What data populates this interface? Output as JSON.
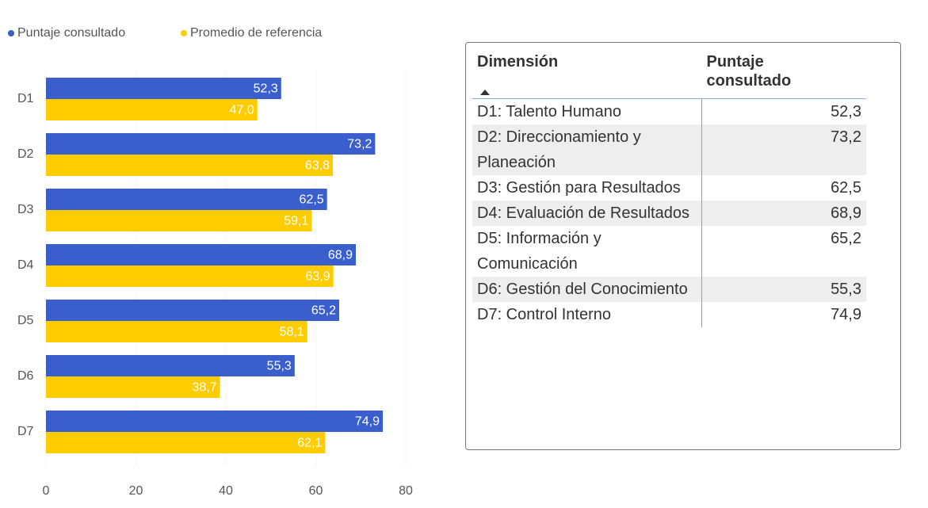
{
  "chart_data": {
    "type": "hbar",
    "categories": [
      "D1",
      "D2",
      "D3",
      "D4",
      "D5",
      "D6",
      "D7"
    ],
    "series": [
      {
        "name": "Puntaje consultado",
        "color": "#3a5fcd",
        "values": [
          52.3,
          73.2,
          62.5,
          68.9,
          65.2,
          55.3,
          74.9
        ],
        "value_labels": [
          "52,3",
          "73,2",
          "62,5",
          "68,9",
          "65,2",
          "55,3",
          "74,9"
        ]
      },
      {
        "name": "Promedio de referencia",
        "color": "#ffcc00",
        "values": [
          47.0,
          63.8,
          59.1,
          63.9,
          58.1,
          38.7,
          62.1
        ],
        "value_labels": [
          "47,0",
          "63,8",
          "59,1",
          "63,9",
          "58,1",
          "38,7",
          "62,1"
        ]
      }
    ],
    "xlim": [
      0,
      80
    ],
    "xticks": [
      0,
      20,
      40,
      60,
      80
    ],
    "grid": true,
    "legend": "top"
  },
  "table": {
    "headers": [
      "Dimensión",
      "Puntaje consultado"
    ],
    "rows": [
      [
        "D1: Talento Humano",
        "52,3"
      ],
      [
        "D2: Direccionamiento y Planeación",
        "73,2"
      ],
      [
        "D3: Gestión para Resultados",
        "62,5"
      ],
      [
        "D4: Evaluación de Resultados",
        "68,9"
      ],
      [
        "D5: Información y Comunicación",
        "65,2"
      ],
      [
        "D6: Gestión del Conocimiento",
        "55,3"
      ],
      [
        "D7: Control Interno",
        "74,9"
      ]
    ]
  }
}
